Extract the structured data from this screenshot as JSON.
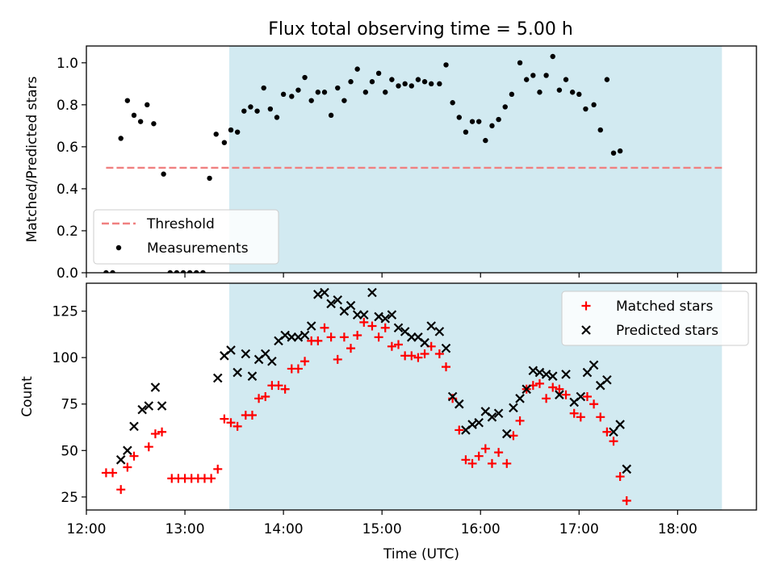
{
  "figure": {
    "title": "Flux total observing time = 5.00 h"
  },
  "colors": {
    "highlight": "#add8e6",
    "threshold": "#f08080",
    "measurements": "#000000",
    "matched": "#ff0000",
    "predicted": "#000000"
  },
  "chart_data": [
    {
      "type": "scatter",
      "panel": "top",
      "title": "Flux total observing time = 5.00 h",
      "xlabel": "",
      "ylabel": "Matched/Predicted stars",
      "xlim": [
        "12:00",
        "18:48"
      ],
      "ylim": [
        0,
        1.08
      ],
      "yticks": [
        0.0,
        0.2,
        0.4,
        0.6,
        0.8,
        1.0
      ],
      "ytick_labels": [
        "0.0",
        "0.2",
        "0.4",
        "0.6",
        "0.8",
        "1.0"
      ],
      "highlight_span": [
        "13:27",
        "18:27"
      ],
      "legend_position": "lower-left",
      "legend": [
        "Threshold",
        "Measurements"
      ],
      "threshold": {
        "name": "Threshold",
        "y": 0.5,
        "x_range": [
          "12:12",
          "18:27"
        ],
        "style": "dashed"
      },
      "series": [
        {
          "name": "Measurements",
          "marker": "dot",
          "points": [
            [
              "12:12",
              0.0
            ],
            [
              "12:16",
              0.0
            ],
            [
              "12:21",
              0.64
            ],
            [
              "12:25",
              0.82
            ],
            [
              "12:29",
              0.75
            ],
            [
              "12:33",
              0.72
            ],
            [
              "12:37",
              0.8
            ],
            [
              "12:41",
              0.71
            ],
            [
              "12:47",
              0.47
            ],
            [
              "12:51",
              0.0
            ],
            [
              "12:55",
              0.0
            ],
            [
              "12:59",
              0.0
            ],
            [
              "13:03",
              0.0
            ],
            [
              "13:07",
              0.0
            ],
            [
              "13:11",
              0.0
            ],
            [
              "13:15",
              0.45
            ],
            [
              "13:19",
              0.66
            ],
            [
              "13:24",
              0.62
            ],
            [
              "13:28",
              0.68
            ],
            [
              "13:32",
              0.67
            ],
            [
              "13:36",
              0.77
            ],
            [
              "13:40",
              0.79
            ],
            [
              "13:44",
              0.77
            ],
            [
              "13:48",
              0.88
            ],
            [
              "13:52",
              0.78
            ],
            [
              "13:56",
              0.74
            ],
            [
              "14:00",
              0.85
            ],
            [
              "14:05",
              0.84
            ],
            [
              "14:09",
              0.87
            ],
            [
              "14:13",
              0.93
            ],
            [
              "14:17",
              0.82
            ],
            [
              "14:21",
              0.86
            ],
            [
              "14:25",
              0.86
            ],
            [
              "14:29",
              0.75
            ],
            [
              "14:33",
              0.88
            ],
            [
              "14:37",
              0.82
            ],
            [
              "14:41",
              0.91
            ],
            [
              "14:45",
              0.97
            ],
            [
              "14:50",
              0.86
            ],
            [
              "14:54",
              0.91
            ],
            [
              "14:58",
              0.95
            ],
            [
              "15:02",
              0.86
            ],
            [
              "15:06",
              0.92
            ],
            [
              "15:10",
              0.89
            ],
            [
              "15:14",
              0.9
            ],
            [
              "15:18",
              0.89
            ],
            [
              "15:22",
              0.92
            ],
            [
              "15:26",
              0.91
            ],
            [
              "15:30",
              0.9
            ],
            [
              "15:35",
              0.9
            ],
            [
              "15:39",
              0.99
            ],
            [
              "15:43",
              0.81
            ],
            [
              "15:47",
              0.74
            ],
            [
              "15:51",
              0.67
            ],
            [
              "15:55",
              0.72
            ],
            [
              "15:59",
              0.72
            ],
            [
              "16:03",
              0.63
            ],
            [
              "16:07",
              0.7
            ],
            [
              "16:11",
              0.73
            ],
            [
              "16:15",
              0.79
            ],
            [
              "16:19",
              0.85
            ],
            [
              "16:24",
              1.0
            ],
            [
              "16:28",
              0.92
            ],
            [
              "16:32",
              0.94
            ],
            [
              "16:36",
              0.86
            ],
            [
              "16:40",
              0.94
            ],
            [
              "16:44",
              1.03
            ],
            [
              "16:48",
              0.87
            ],
            [
              "16:52",
              0.92
            ],
            [
              "16:56",
              0.86
            ],
            [
              "17:00",
              0.85
            ],
            [
              "17:04",
              0.78
            ],
            [
              "17:09",
              0.8
            ],
            [
              "17:13",
              0.68
            ],
            [
              "17:17",
              0.92
            ],
            [
              "17:21",
              0.57
            ],
            [
              "17:25",
              0.58
            ]
          ]
        }
      ]
    },
    {
      "type": "scatter",
      "panel": "bottom",
      "xlabel": "Time (UTC)",
      "ylabel": "Count",
      "xlim": [
        "12:00",
        "18:48"
      ],
      "ylim": [
        18,
        140
      ],
      "yticks": [
        25,
        50,
        75,
        100,
        125
      ],
      "ytick_labels": [
        "25",
        "50",
        "75",
        "100",
        "125"
      ],
      "xticks": [
        "12:00",
        "13:00",
        "14:00",
        "15:00",
        "16:00",
        "17:00",
        "18:00"
      ],
      "xtick_labels": [
        "12:00",
        "13:00",
        "14:00",
        "15:00",
        "16:00",
        "17:00",
        "18:00"
      ],
      "highlight_span": [
        "13:27",
        "18:27"
      ],
      "legend_position": "upper-right",
      "legend": [
        "Matched stars",
        "Predicted stars"
      ],
      "series": [
        {
          "name": "Matched stars",
          "marker": "plus",
          "points": [
            [
              "12:12",
              38
            ],
            [
              "12:16",
              38
            ],
            [
              "12:21",
              29
            ],
            [
              "12:25",
              41
            ],
            [
              "12:29",
              47
            ],
            [
              "12:38",
              52
            ],
            [
              "12:42",
              59
            ],
            [
              "12:46",
              60
            ],
            [
              "12:52",
              35
            ],
            [
              "12:56",
              35
            ],
            [
              "13:00",
              35
            ],
            [
              "13:04",
              35
            ],
            [
              "13:08",
              35
            ],
            [
              "13:12",
              35
            ],
            [
              "13:16",
              35
            ],
            [
              "13:20",
              40
            ],
            [
              "13:24",
              67
            ],
            [
              "13:28",
              65
            ],
            [
              "13:32",
              63
            ],
            [
              "13:37",
              69
            ],
            [
              "13:41",
              69
            ],
            [
              "13:45",
              78
            ],
            [
              "13:49",
              79
            ],
            [
              "13:53",
              85
            ],
            [
              "13:57",
              85
            ],
            [
              "14:01",
              83
            ],
            [
              "14:05",
              94
            ],
            [
              "14:09",
              94
            ],
            [
              "14:13",
              98
            ],
            [
              "14:17",
              109
            ],
            [
              "14:21",
              109
            ],
            [
              "14:25",
              116
            ],
            [
              "14:29",
              111
            ],
            [
              "14:33",
              99
            ],
            [
              "14:37",
              111
            ],
            [
              "14:41",
              105
            ],
            [
              "14:45",
              112
            ],
            [
              "14:49",
              119
            ],
            [
              "14:54",
              117
            ],
            [
              "14:58",
              111
            ],
            [
              "15:02",
              116
            ],
            [
              "15:06",
              106
            ],
            [
              "15:10",
              107
            ],
            [
              "15:14",
              101
            ],
            [
              "15:18",
              101
            ],
            [
              "15:22",
              100
            ],
            [
              "15:26",
              102
            ],
            [
              "15:30",
              106
            ],
            [
              "15:35",
              102
            ],
            [
              "15:39",
              95
            ],
            [
              "15:43",
              78
            ],
            [
              "15:47",
              61
            ],
            [
              "15:51",
              45
            ],
            [
              "15:55",
              43
            ],
            [
              "15:59",
              47
            ],
            [
              "16:03",
              51
            ],
            [
              "16:07",
              43
            ],
            [
              "16:11",
              49
            ],
            [
              "16:16",
              43
            ],
            [
              "16:20",
              58
            ],
            [
              "16:24",
              66
            ],
            [
              "16:28",
              83
            ],
            [
              "16:32",
              85
            ],
            [
              "16:36",
              86
            ],
            [
              "16:40",
              78
            ],
            [
              "16:44",
              84
            ],
            [
              "16:48",
              83
            ],
            [
              "16:52",
              80
            ],
            [
              "16:57",
              70
            ],
            [
              "17:01",
              68
            ],
            [
              "17:05",
              79
            ],
            [
              "17:09",
              75
            ],
            [
              "17:13",
              68
            ],
            [
              "17:17",
              60
            ],
            [
              "17:21",
              55
            ],
            [
              "17:25",
              36
            ],
            [
              "17:29",
              23
            ]
          ]
        },
        {
          "name": "Predicted stars",
          "marker": "x",
          "points": [
            [
              "12:21",
              45
            ],
            [
              "12:25",
              50
            ],
            [
              "12:29",
              63
            ],
            [
              "12:34",
              72
            ],
            [
              "12:38",
              74
            ],
            [
              "12:42",
              84
            ],
            [
              "12:46",
              74
            ],
            [
              "13:20",
              89
            ],
            [
              "13:24",
              101
            ],
            [
              "13:28",
              104
            ],
            [
              "13:32",
              92
            ],
            [
              "13:37",
              102
            ],
            [
              "13:41",
              90
            ],
            [
              "13:45",
              99
            ],
            [
              "13:49",
              102
            ],
            [
              "13:53",
              98
            ],
            [
              "13:57",
              109
            ],
            [
              "14:01",
              112
            ],
            [
              "14:05",
              111
            ],
            [
              "14:09",
              111
            ],
            [
              "14:13",
              112
            ],
            [
              "14:17",
              117
            ],
            [
              "14:21",
              134
            ],
            [
              "14:25",
              135
            ],
            [
              "14:29",
              129
            ],
            [
              "14:33",
              131
            ],
            [
              "14:37",
              125
            ],
            [
              "14:41",
              128
            ],
            [
              "14:45",
              123
            ],
            [
              "14:49",
              123
            ],
            [
              "14:54",
              135
            ],
            [
              "14:58",
              122
            ],
            [
              "15:02",
              121
            ],
            [
              "15:06",
              123
            ],
            [
              "15:10",
              116
            ],
            [
              "15:14",
              114
            ],
            [
              "15:18",
              111
            ],
            [
              "15:22",
              111
            ],
            [
              "15:26",
              108
            ],
            [
              "15:30",
              117
            ],
            [
              "15:35",
              114
            ],
            [
              "15:39",
              105
            ],
            [
              "15:43",
              79
            ],
            [
              "15:47",
              75
            ],
            [
              "15:51",
              61
            ],
            [
              "15:55",
              64
            ],
            [
              "15:59",
              65
            ],
            [
              "16:03",
              71
            ],
            [
              "16:07",
              68
            ],
            [
              "16:11",
              70
            ],
            [
              "16:16",
              59
            ],
            [
              "16:20",
              73
            ],
            [
              "16:24",
              78
            ],
            [
              "16:28",
              83
            ],
            [
              "16:32",
              93
            ],
            [
              "16:36",
              92
            ],
            [
              "16:40",
              91
            ],
            [
              "16:44",
              90
            ],
            [
              "16:48",
              80
            ],
            [
              "16:52",
              91
            ],
            [
              "16:57",
              76
            ],
            [
              "17:01",
              79
            ],
            [
              "17:05",
              92
            ],
            [
              "17:09",
              96
            ],
            [
              "17:13",
              85
            ],
            [
              "17:17",
              88
            ],
            [
              "17:21",
              60
            ],
            [
              "17:25",
              64
            ],
            [
              "17:29",
              40
            ]
          ]
        }
      ]
    }
  ]
}
